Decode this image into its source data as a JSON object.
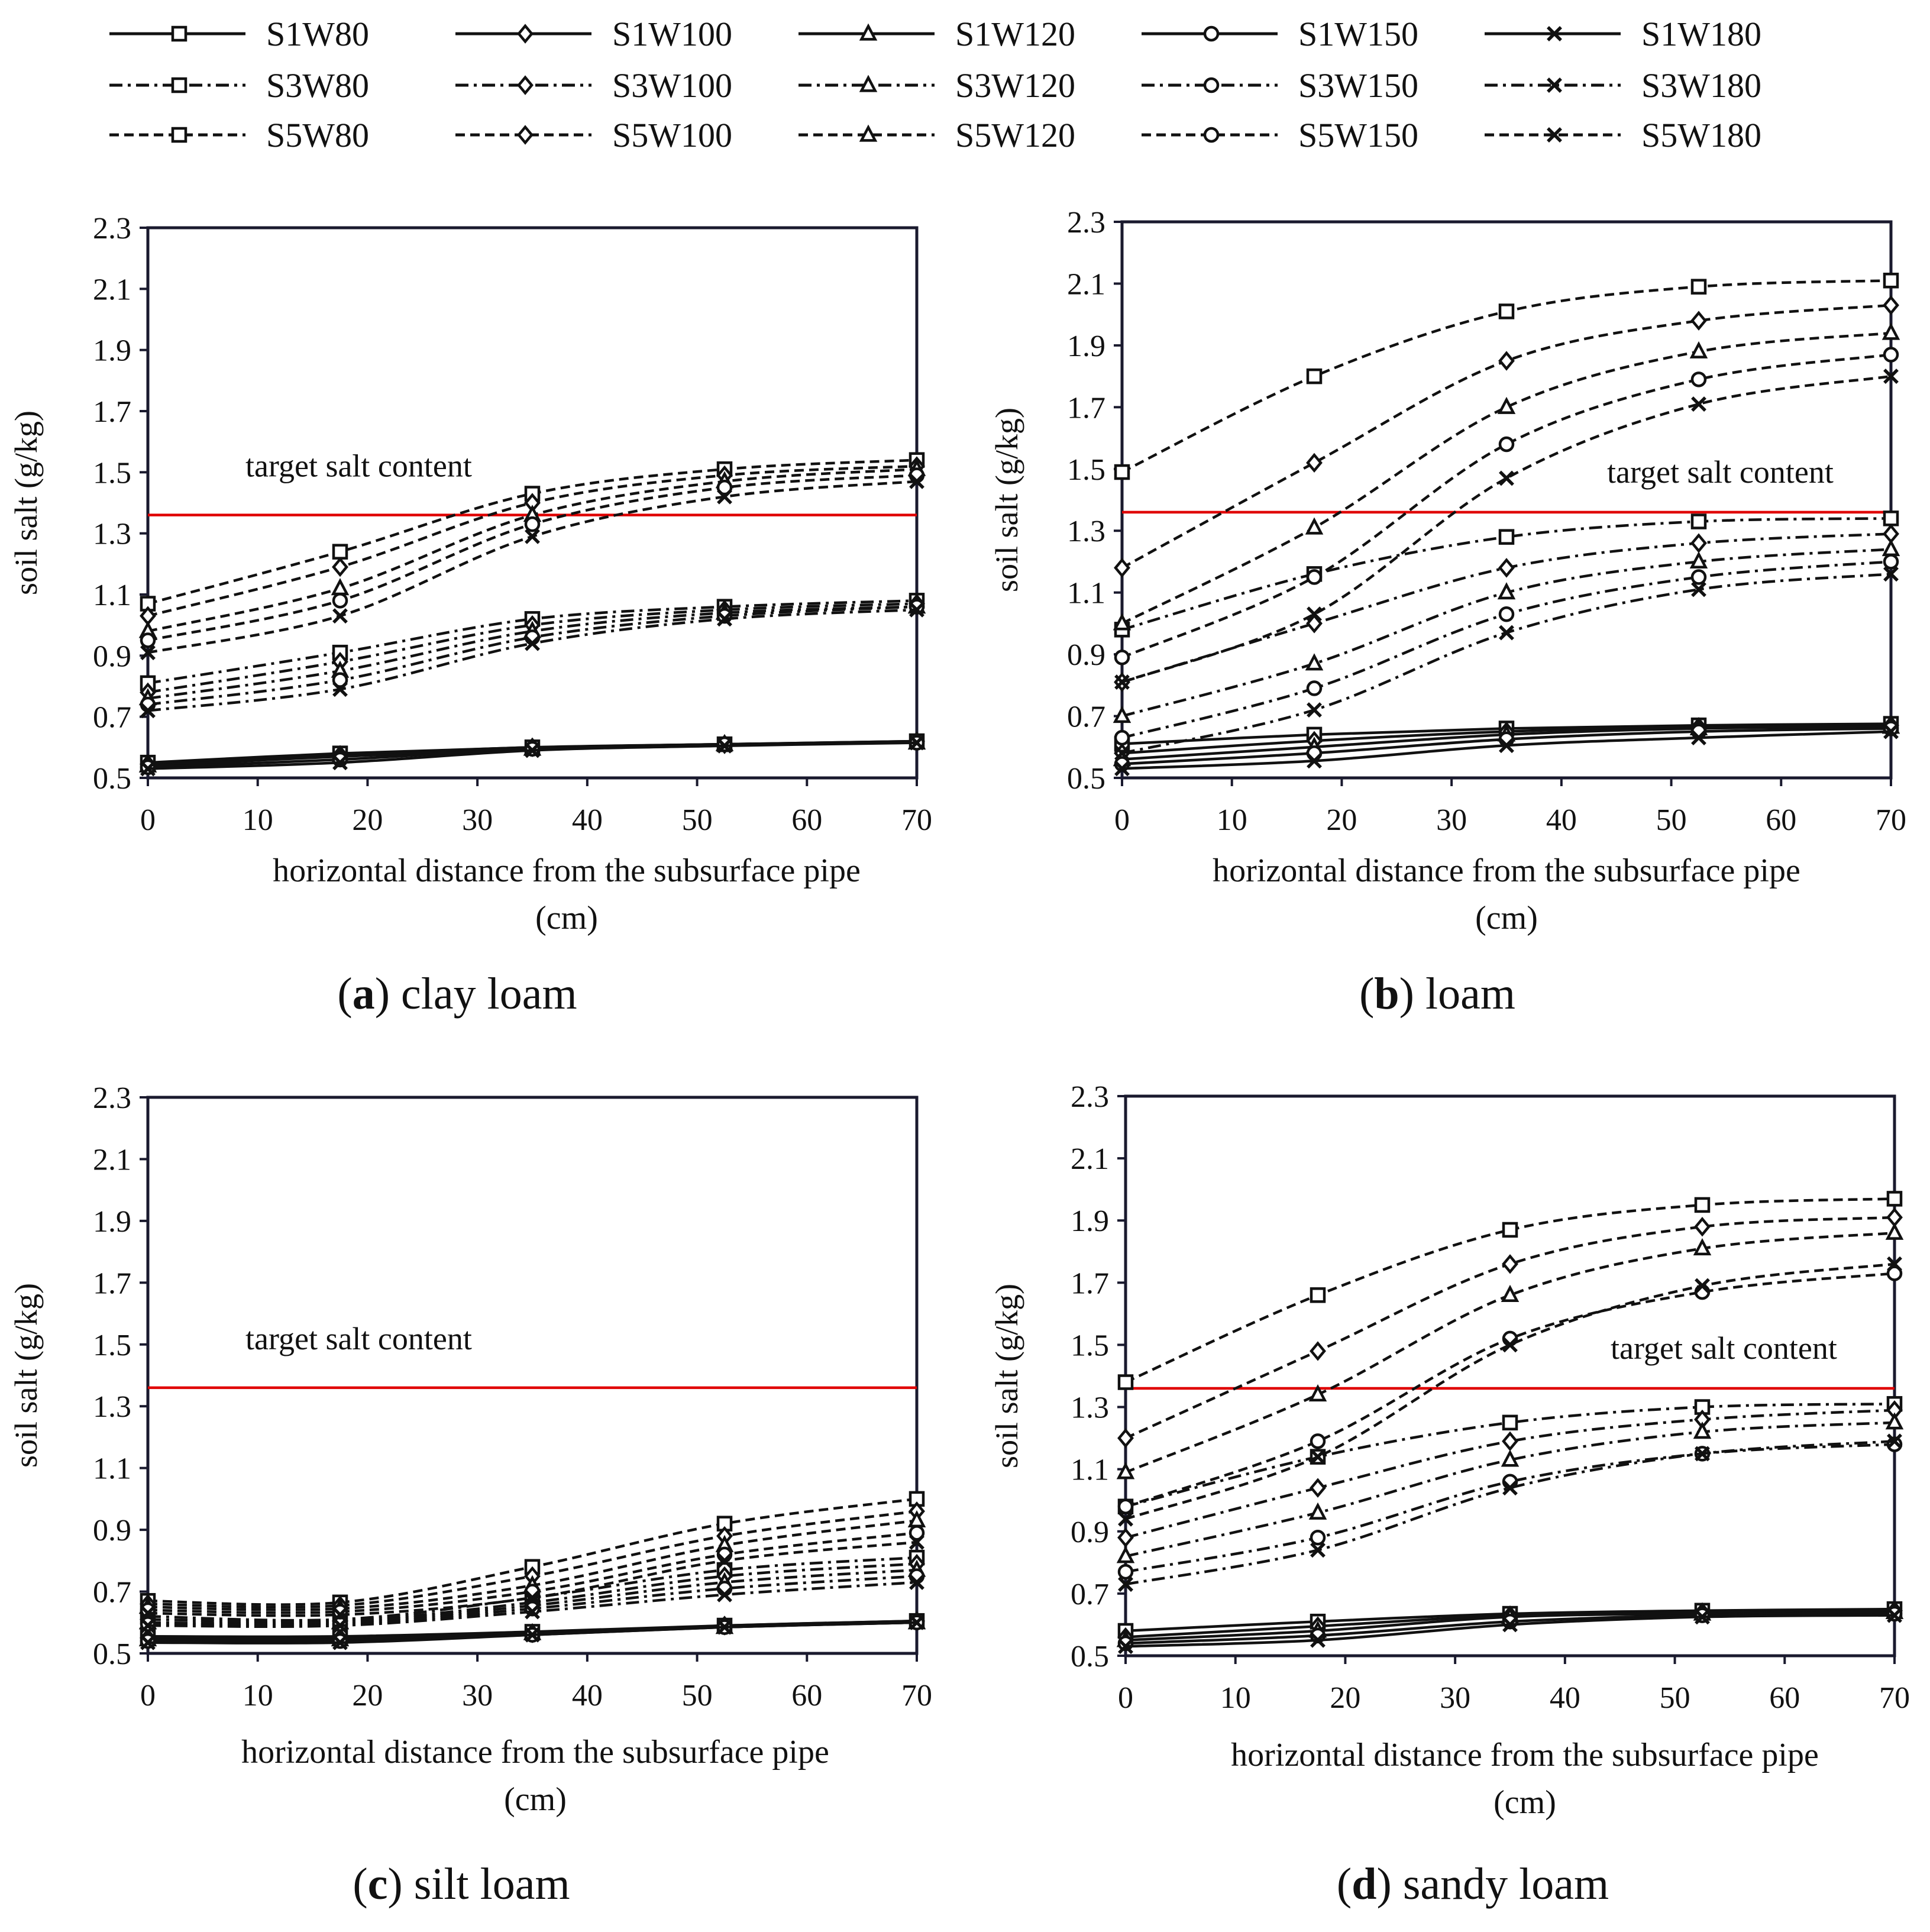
{
  "legend": {
    "items": [
      {
        "label": "S1W80",
        "style": "solid",
        "marker": "square"
      },
      {
        "label": "S1W100",
        "style": "solid",
        "marker": "diamond"
      },
      {
        "label": "S1W120",
        "style": "solid",
        "marker": "triangle"
      },
      {
        "label": "S1W150",
        "style": "solid",
        "marker": "circle"
      },
      {
        "label": "S1W180",
        "style": "solid",
        "marker": "cross"
      },
      {
        "label": "S3W80",
        "style": "dashdot",
        "marker": "square"
      },
      {
        "label": "S3W100",
        "style": "dashdot",
        "marker": "diamond"
      },
      {
        "label": "S3W120",
        "style": "dashdot",
        "marker": "triangle"
      },
      {
        "label": "S3W150",
        "style": "dashdot",
        "marker": "circle"
      },
      {
        "label": "S3W180",
        "style": "dashdot",
        "marker": "cross"
      },
      {
        "label": "S5W80",
        "style": "dashed",
        "marker": "square"
      },
      {
        "label": "S5W100",
        "style": "dashed",
        "marker": "diamond"
      },
      {
        "label": "S5W120",
        "style": "dashed",
        "marker": "triangle"
      },
      {
        "label": "S5W150",
        "style": "dashed",
        "marker": "circle"
      },
      {
        "label": "S5W180",
        "style": "dashed",
        "marker": "cross"
      }
    ]
  },
  "colors": {
    "series": "#111111",
    "target": "#e00000",
    "axis": "#1a1a2e"
  },
  "chart_data": [
    {
      "type": "line",
      "panel_letter": "a",
      "caption": "clay loam",
      "xlabel": "horizontal distance from the subsurface pipe",
      "xlabel_unit": "(cm)",
      "ylabel": "soil salt (g/kg)",
      "x_ticks": [
        0,
        10,
        20,
        30,
        40,
        50,
        60,
        70
      ],
      "y_ticks": [
        0.5,
        0.7,
        0.9,
        1.1,
        1.3,
        1.5,
        1.7,
        1.9,
        2.1,
        2.3
      ],
      "xlim": [
        0,
        70
      ],
      "ylim": [
        0.5,
        2.3
      ],
      "target_value": 1.36,
      "target_label": "target salt content",
      "target_label_pos": "upper-left",
      "x": [
        0,
        17.5,
        35,
        52.5,
        70
      ],
      "series": [
        {
          "name": "S1W80",
          "values": [
            0.55,
            0.58,
            0.6,
            0.61,
            0.62
          ]
        },
        {
          "name": "S1W100",
          "values": [
            0.545,
            0.575,
            0.6,
            0.61,
            0.62
          ]
        },
        {
          "name": "S1W120",
          "values": [
            0.54,
            0.57,
            0.595,
            0.61,
            0.615
          ]
        },
        {
          "name": "S1W150",
          "values": [
            0.535,
            0.56,
            0.595,
            0.61,
            0.615
          ]
        },
        {
          "name": "S1W180",
          "values": [
            0.53,
            0.55,
            0.59,
            0.605,
            0.615
          ]
        },
        {
          "name": "S3W80",
          "values": [
            0.81,
            0.91,
            1.02,
            1.06,
            1.08
          ]
        },
        {
          "name": "S3W100",
          "values": [
            0.78,
            0.88,
            1.0,
            1.05,
            1.07
          ]
        },
        {
          "name": "S3W120",
          "values": [
            0.76,
            0.85,
            0.98,
            1.04,
            1.06
          ]
        },
        {
          "name": "S3W150",
          "values": [
            0.74,
            0.82,
            0.96,
            1.03,
            1.06
          ]
        },
        {
          "name": "S3W180",
          "values": [
            0.72,
            0.79,
            0.94,
            1.02,
            1.05
          ]
        },
        {
          "name": "S5W80",
          "values": [
            1.07,
            1.24,
            1.43,
            1.51,
            1.54
          ]
        },
        {
          "name": "S5W100",
          "values": [
            1.03,
            1.19,
            1.4,
            1.49,
            1.52
          ]
        },
        {
          "name": "S5W120",
          "values": [
            0.98,
            1.12,
            1.36,
            1.47,
            1.51
          ]
        },
        {
          "name": "S5W150",
          "values": [
            0.95,
            1.08,
            1.33,
            1.45,
            1.49
          ]
        },
        {
          "name": "S5W180",
          "values": [
            0.91,
            1.03,
            1.29,
            1.42,
            1.47
          ]
        }
      ]
    },
    {
      "type": "line",
      "panel_letter": "b",
      "caption": "loam",
      "xlabel": "horizontal distance from the subsurface pipe",
      "xlabel_unit": "(cm)",
      "ylabel": "soil salt (g/kg)",
      "x_ticks": [
        0,
        10,
        20,
        30,
        40,
        50,
        60,
        70
      ],
      "y_ticks": [
        0.5,
        0.7,
        0.9,
        1.1,
        1.3,
        1.5,
        1.7,
        1.9,
        2.1,
        2.3
      ],
      "xlim": [
        0,
        70
      ],
      "ylim": [
        0.5,
        2.3
      ],
      "target_value": 1.36,
      "target_label": "target salt content",
      "target_label_pos": "upper-right",
      "x": [
        0,
        17.5,
        35,
        52.5,
        70
      ],
      "series": [
        {
          "name": "S1W80",
          "values": [
            0.61,
            0.64,
            0.66,
            0.67,
            0.675
          ]
        },
        {
          "name": "S1W100",
          "values": [
            0.58,
            0.62,
            0.65,
            0.665,
            0.67
          ]
        },
        {
          "name": "S1W120",
          "values": [
            0.56,
            0.6,
            0.64,
            0.66,
            0.665
          ]
        },
        {
          "name": "S1W150",
          "values": [
            0.545,
            0.58,
            0.625,
            0.65,
            0.66
          ]
        },
        {
          "name": "S1W180",
          "values": [
            0.53,
            0.555,
            0.605,
            0.63,
            0.65
          ]
        },
        {
          "name": "S3W80",
          "values": [
            0.98,
            1.16,
            1.28,
            1.33,
            1.34
          ]
        },
        {
          "name": "S3W100",
          "values": [
            0.81,
            1.0,
            1.18,
            1.26,
            1.29
          ]
        },
        {
          "name": "S3W120",
          "values": [
            0.7,
            0.87,
            1.1,
            1.2,
            1.24
          ]
        },
        {
          "name": "S3W150",
          "values": [
            0.63,
            0.79,
            1.03,
            1.15,
            1.2
          ]
        },
        {
          "name": "S3W180",
          "values": [
            0.58,
            0.72,
            0.97,
            1.11,
            1.16
          ]
        },
        {
          "name": "S5W80",
          "values": [
            1.49,
            1.8,
            2.01,
            2.09,
            2.11
          ]
        },
        {
          "name": "S5W100",
          "values": [
            1.18,
            1.52,
            1.85,
            1.98,
            2.03
          ]
        },
        {
          "name": "S5W120",
          "values": [
            1.0,
            1.31,
            1.7,
            1.88,
            1.94
          ]
        },
        {
          "name": "S5W150",
          "values": [
            0.89,
            1.15,
            1.58,
            1.79,
            1.87
          ]
        },
        {
          "name": "S5W180",
          "values": [
            0.81,
            1.03,
            1.47,
            1.71,
            1.8
          ]
        }
      ]
    },
    {
      "type": "line",
      "panel_letter": "c",
      "caption": "silt loam",
      "xlabel": "horizontal distance from the subsurface pipe",
      "xlabel_unit": "(cm)",
      "ylabel": "soil salt (g/kg)",
      "x_ticks": [
        0,
        10,
        20,
        30,
        40,
        50,
        60,
        70
      ],
      "y_ticks": [
        0.5,
        0.7,
        0.9,
        1.1,
        1.3,
        1.5,
        1.7,
        1.9,
        2.1,
        2.3
      ],
      "xlim": [
        0,
        70
      ],
      "ylim": [
        0.5,
        2.3
      ],
      "target_value": 1.36,
      "target_label": "target salt content",
      "target_label_pos": "upper-left",
      "x": [
        0,
        17.5,
        35,
        52.5,
        70
      ],
      "series": [
        {
          "name": "S1W80",
          "values": [
            0.555,
            0.555,
            0.57,
            0.59,
            0.605
          ]
        },
        {
          "name": "S1W100",
          "values": [
            0.55,
            0.55,
            0.565,
            0.59,
            0.605
          ]
        },
        {
          "name": "S1W120",
          "values": [
            0.545,
            0.545,
            0.565,
            0.585,
            0.6
          ]
        },
        {
          "name": "S1W150",
          "values": [
            0.54,
            0.54,
            0.56,
            0.585,
            0.6
          ]
        },
        {
          "name": "S1W180",
          "values": [
            0.535,
            0.535,
            0.56,
            0.585,
            0.6
          ]
        },
        {
          "name": "S3W80",
          "values": [
            0.62,
            0.61,
            0.68,
            0.77,
            0.81
          ]
        },
        {
          "name": "S3W100",
          "values": [
            0.61,
            0.605,
            0.665,
            0.75,
            0.79
          ]
        },
        {
          "name": "S3W120",
          "values": [
            0.6,
            0.6,
            0.655,
            0.73,
            0.77
          ]
        },
        {
          "name": "S3W150",
          "values": [
            0.595,
            0.595,
            0.645,
            0.71,
            0.75
          ]
        },
        {
          "name": "S3W180",
          "values": [
            0.59,
            0.59,
            0.635,
            0.69,
            0.73
          ]
        },
        {
          "name": "S5W80",
          "values": [
            0.67,
            0.665,
            0.78,
            0.92,
            1.0
          ]
        },
        {
          "name": "S5W100",
          "values": [
            0.66,
            0.655,
            0.75,
            0.88,
            0.96
          ]
        },
        {
          "name": "S5W120",
          "values": [
            0.65,
            0.645,
            0.72,
            0.85,
            0.93
          ]
        },
        {
          "name": "S5W150",
          "values": [
            0.64,
            0.635,
            0.7,
            0.82,
            0.89
          ]
        },
        {
          "name": "S5W180",
          "values": [
            0.63,
            0.625,
            0.68,
            0.8,
            0.86
          ]
        }
      ]
    },
    {
      "type": "line",
      "panel_letter": "d",
      "caption": "sandy loam",
      "xlabel": "horizontal distance from the subsurface pipe",
      "xlabel_unit": "(cm)",
      "ylabel": "soil salt (g/kg)",
      "x_ticks": [
        0,
        10,
        20,
        30,
        40,
        50,
        60,
        70
      ],
      "y_ticks": [
        0.5,
        0.7,
        0.9,
        1.1,
        1.3,
        1.5,
        1.7,
        1.9,
        2.1,
        2.3
      ],
      "xlim": [
        0,
        70
      ],
      "ylim": [
        0.5,
        2.3
      ],
      "target_value": 1.36,
      "target_label": "target salt content",
      "target_label_pos": "upper-right",
      "x": [
        0,
        17.5,
        35,
        52.5,
        70
      ],
      "series": [
        {
          "name": "S1W80",
          "values": [
            0.58,
            0.61,
            0.635,
            0.645,
            0.65
          ]
        },
        {
          "name": "S1W100",
          "values": [
            0.56,
            0.595,
            0.63,
            0.64,
            0.645
          ]
        },
        {
          "name": "S1W120",
          "values": [
            0.55,
            0.58,
            0.625,
            0.635,
            0.64
          ]
        },
        {
          "name": "S1W150",
          "values": [
            0.54,
            0.565,
            0.61,
            0.63,
            0.635
          ]
        },
        {
          "name": "S1W180",
          "values": [
            0.53,
            0.55,
            0.6,
            0.625,
            0.63
          ]
        },
        {
          "name": "S3W80",
          "values": [
            0.98,
            1.14,
            1.25,
            1.3,
            1.31
          ]
        },
        {
          "name": "S3W100",
          "values": [
            0.88,
            1.04,
            1.19,
            1.26,
            1.29
          ]
        },
        {
          "name": "S3W120",
          "values": [
            0.82,
            0.96,
            1.13,
            1.22,
            1.25
          ]
        },
        {
          "name": "S3W150",
          "values": [
            0.77,
            0.88,
            1.06,
            1.15,
            1.18
          ]
        },
        {
          "name": "S3W180",
          "values": [
            0.73,
            0.84,
            1.04,
            1.15,
            1.19
          ]
        },
        {
          "name": "S5W80",
          "values": [
            1.38,
            1.66,
            1.87,
            1.95,
            1.97
          ]
        },
        {
          "name": "S5W100",
          "values": [
            1.2,
            1.48,
            1.76,
            1.88,
            1.91
          ]
        },
        {
          "name": "S5W120",
          "values": [
            1.09,
            1.34,
            1.66,
            1.81,
            1.86
          ]
        },
        {
          "name": "S5W150",
          "values": [
            0.98,
            1.19,
            1.52,
            1.67,
            1.73
          ]
        },
        {
          "name": "S5W180",
          "values": [
            0.94,
            1.14,
            1.5,
            1.69,
            1.76
          ]
        }
      ]
    }
  ]
}
